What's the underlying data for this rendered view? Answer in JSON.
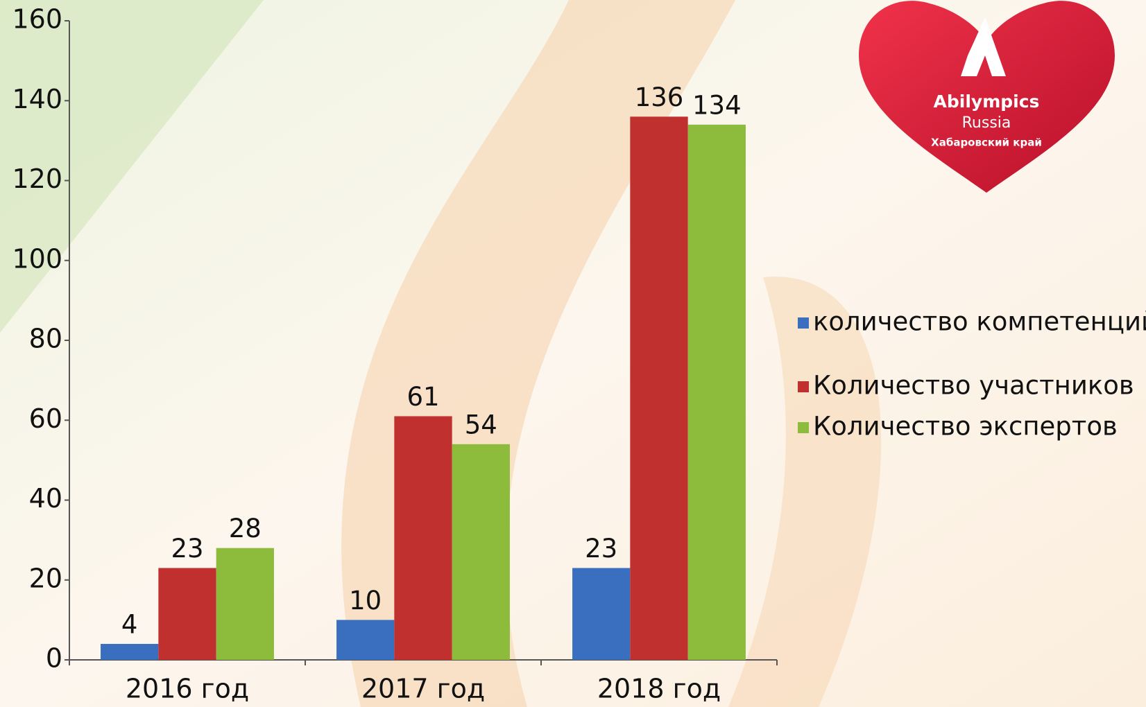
{
  "chart_data": {
    "type": "bar",
    "categories": [
      "2016 год",
      "2017 год",
      "2018 год"
    ],
    "series": [
      {
        "name": "количество компетенций",
        "color": "#3a6fc0",
        "values": [
          4,
          10,
          23
        ]
      },
      {
        "name": "Количество участников",
        "color": "#c0302e",
        "values": [
          23,
          61,
          136
        ]
      },
      {
        "name": "Количество экспертов",
        "color": "#8dbb3c",
        "values": [
          28,
          54,
          134
        ]
      }
    ],
    "ylim": [
      0,
      160
    ],
    "yticks": [
      0,
      20,
      40,
      60,
      80,
      100,
      120,
      140,
      160
    ],
    "legend": "right"
  },
  "logo": {
    "title": "Abilympics",
    "subtitle": "Russia",
    "region": "Хабаровский край"
  }
}
